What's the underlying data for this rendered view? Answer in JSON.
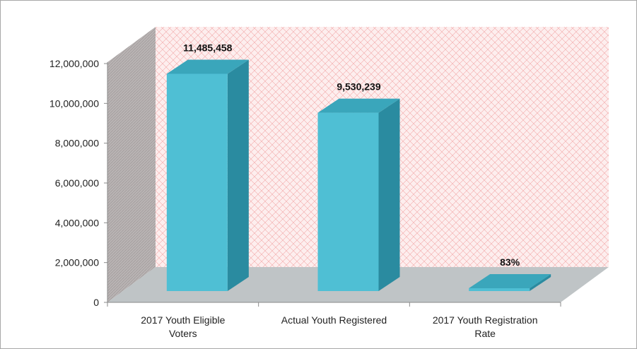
{
  "chart_data": {
    "type": "bar",
    "categories": [
      [
        "2017 Youth Eligible",
        "Voters"
      ],
      [
        "Actual Youth Registered"
      ],
      [
        "2017 Youth Registration",
        "Rate"
      ]
    ],
    "values": [
      11485458,
      9530239,
      83
    ],
    "data_labels": [
      "11,485,458",
      "9,530,239",
      "83%"
    ],
    "y_ticks": [
      "0",
      "2,000,000",
      "4,000,000",
      "6,000,000",
      "8,000,000",
      "10,000,000",
      "12,000,000"
    ],
    "y_tick_values": [
      0,
      2000000,
      4000000,
      6000000,
      8000000,
      10000000,
      12000000
    ],
    "ylim": [
      0,
      12000000
    ],
    "three_d": true,
    "grid": false,
    "legend": "none",
    "colors": {
      "bar_front": "#4fbfd4",
      "bar_side": "#2a8ba0",
      "bar_top": "#3aa6bb",
      "floor": "#bfc4c6",
      "back_wall": "#fce8e8",
      "side_wall": "#b8b3b3"
    }
  }
}
